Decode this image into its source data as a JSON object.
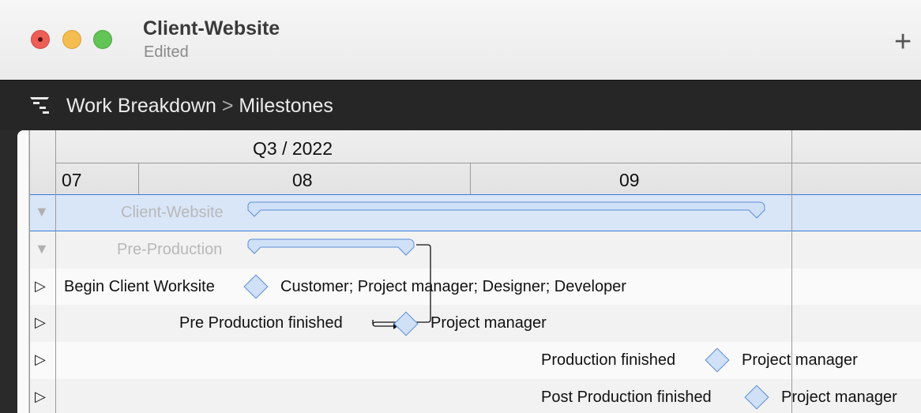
{
  "window": {
    "title": "Client-Website",
    "subtitle": "Edited",
    "traffic_lights": {
      "close": "#ec5f57",
      "minimize": "#f4bd4f",
      "zoom": "#61c454"
    },
    "add_icon": "plus-icon"
  },
  "breadcrumb": {
    "icon": "outline-hierarchy-icon",
    "items": [
      "Work Breakdown",
      "Milestones"
    ],
    "separator": ">"
  },
  "timeline": {
    "quarter": "Q3 / 2022",
    "months": [
      "07",
      "08",
      "09"
    ]
  },
  "rows": [
    {
      "name": "Client-Website",
      "type": "group",
      "expanded": true,
      "selected": true
    },
    {
      "name": "Pre-Production",
      "type": "group",
      "expanded": true
    },
    {
      "name": "Begin Client Worksite",
      "type": "milestone",
      "resources": "Customer; Project manager; Designer; Developer"
    },
    {
      "name": "Pre Production finished",
      "type": "milestone",
      "resources": "Project manager"
    },
    {
      "name": "Production finished",
      "type": "milestone",
      "resources": "Project manager"
    },
    {
      "name": "Post Production finished",
      "type": "milestone",
      "resources": "Project manager"
    }
  ],
  "colors": {
    "selection": "#d9e6f8",
    "selection_border": "#3a7bd5",
    "bar_fill": "#cfe0f7",
    "bar_border": "#5b8fd6"
  }
}
